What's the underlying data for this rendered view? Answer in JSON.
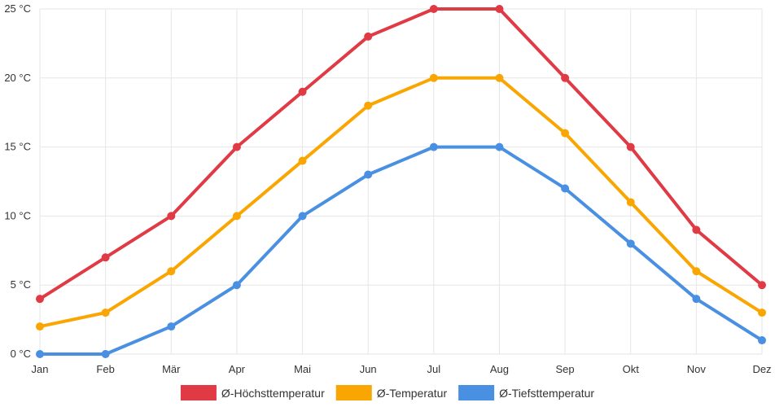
{
  "chart_data": {
    "type": "line",
    "categories": [
      "Jan",
      "Feb",
      "Mär",
      "Apr",
      "Mai",
      "Jun",
      "Jul",
      "Aug",
      "Sep",
      "Okt",
      "Nov",
      "Dez"
    ],
    "series": [
      {
        "name": "Ø-Höchsttemperatur",
        "color": "#e03a45",
        "values": [
          4,
          7,
          10,
          15,
          19,
          23,
          25,
          25,
          20,
          15,
          9,
          5
        ]
      },
      {
        "name": "Ø-Temperatur",
        "color": "#f9a602",
        "values": [
          2,
          3,
          6,
          10,
          14,
          18,
          20,
          20,
          16,
          11,
          6,
          3
        ]
      },
      {
        "name": "Ø-Tiefsttemperatur",
        "color": "#4a90e2",
        "values": [
          0,
          0,
          2,
          5,
          10,
          13,
          15,
          15,
          12,
          8,
          4,
          1
        ]
      }
    ],
    "y_ticks": [
      "0 °C",
      "5 °C",
      "10 °C",
      "15 °C",
      "20 °C",
      "25 °C"
    ],
    "ylim": [
      0,
      25
    ],
    "grid": true,
    "legend_position": "bottom"
  }
}
